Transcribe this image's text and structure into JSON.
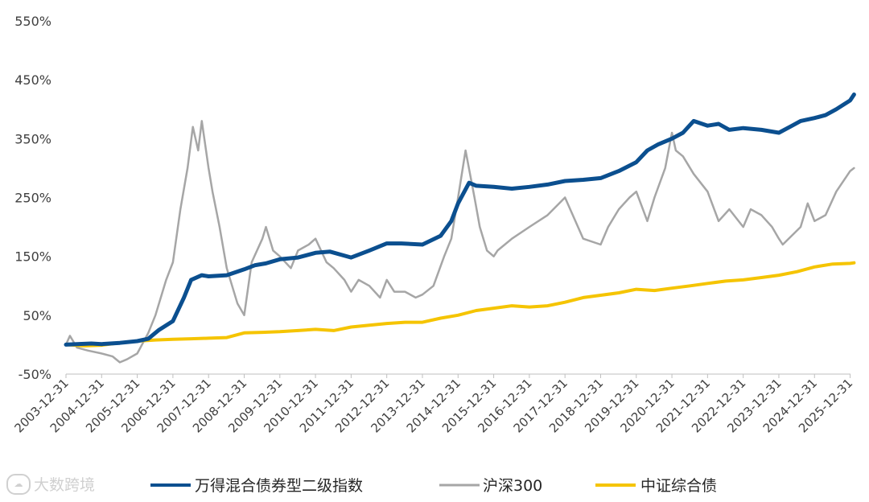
{
  "chart_data": {
    "type": "line",
    "ylim": [
      -50,
      550
    ],
    "yticks": [
      "550%",
      "450%",
      "350%",
      "250%",
      "150%",
      "50%",
      "-50%"
    ],
    "ytick_values": [
      550,
      450,
      350,
      250,
      150,
      50,
      -50
    ],
    "x_categories": [
      "2003-12-31",
      "2004-12-31",
      "2005-12-31",
      "2006-12-31",
      "2007-12-31",
      "2008-12-31",
      "2009-12-31",
      "2010-12-31",
      "2011-12-31",
      "2012-12-31",
      "2013-12-31",
      "2014-12-31",
      "2015-12-31",
      "2016-12-31",
      "2017-12-31",
      "2018-12-31",
      "2019-12-31",
      "2020-12-31",
      "2021-12-31",
      "2022-12-31",
      "2023-12-31",
      "2024-12-31",
      "2025-12-31"
    ],
    "series": [
      {
        "name": "万得混合债券型二级指数",
        "color": "#0b4f8f",
        "x": [
          2003.99,
          2004.3,
          2004.7,
          2004.99,
          2005.5,
          2005.99,
          2006.3,
          2006.6,
          2006.99,
          2007.3,
          2007.5,
          2007.8,
          2007.99,
          2008.5,
          2008.99,
          2009.3,
          2009.6,
          2009.99,
          2010.5,
          2010.99,
          2011.4,
          2011.99,
          2012.5,
          2012.99,
          2013.4,
          2013.99,
          2014.5,
          2014.8,
          2014.99,
          2015.3,
          2015.5,
          2015.99,
          2016.5,
          2016.99,
          2017.5,
          2017.99,
          2018.5,
          2018.99,
          2019.5,
          2019.99,
          2020.3,
          2020.6,
          2020.99,
          2021.3,
          2021.6,
          2021.99,
          2022.3,
          2022.6,
          2022.99,
          2023.5,
          2023.99,
          2024.3,
          2024.6,
          2024.99,
          2025.3,
          2025.6,
          2025.99,
          2026.1
        ],
        "values": [
          0,
          1,
          2,
          1,
          3,
          6,
          10,
          25,
          40,
          80,
          110,
          118,
          116,
          118,
          128,
          135,
          138,
          145,
          148,
          156,
          158,
          148,
          160,
          172,
          172,
          170,
          185,
          210,
          240,
          275,
          270,
          268,
          265,
          268,
          272,
          278,
          280,
          283,
          295,
          310,
          330,
          340,
          350,
          360,
          380,
          372,
          375,
          365,
          368,
          365,
          360,
          370,
          380,
          385,
          390,
          400,
          415,
          425
        ]
      },
      {
        "name": "沪深300",
        "color": "#a6a6a6",
        "x": [
          2003.99,
          2004.1,
          2004.3,
          2004.6,
          2004.99,
          2005.3,
          2005.5,
          2005.7,
          2005.99,
          2006.3,
          2006.5,
          2006.8,
          2006.99,
          2007.2,
          2007.4,
          2007.55,
          2007.7,
          2007.8,
          2007.99,
          2008.1,
          2008.3,
          2008.5,
          2008.8,
          2008.99,
          2009.2,
          2009.5,
          2009.6,
          2009.8,
          2009.99,
          2010.3,
          2010.5,
          2010.8,
          2010.99,
          2011.3,
          2011.5,
          2011.8,
          2011.99,
          2012.2,
          2012.5,
          2012.8,
          2012.99,
          2013.2,
          2013.5,
          2013.8,
          2013.99,
          2014.3,
          2014.6,
          2014.8,
          2014.99,
          2015.2,
          2015.45,
          2015.6,
          2015.8,
          2015.99,
          2016.1,
          2016.5,
          2016.99,
          2017.5,
          2017.99,
          2018.5,
          2018.99,
          2019.2,
          2019.5,
          2019.8,
          2019.99,
          2020.3,
          2020.5,
          2020.8,
          2020.99,
          2021.1,
          2021.3,
          2021.6,
          2021.99,
          2022.3,
          2022.6,
          2022.99,
          2023.2,
          2023.5,
          2023.8,
          2023.99,
          2024.1,
          2024.6,
          2024.8,
          2024.99,
          2025.3,
          2025.6,
          2025.99,
          2026.1
        ],
        "values": [
          0,
          15,
          -5,
          -10,
          -15,
          -20,
          -30,
          -25,
          -15,
          20,
          50,
          110,
          140,
          230,
          300,
          370,
          330,
          380,
          300,
          260,
          200,
          130,
          70,
          50,
          140,
          180,
          200,
          160,
          150,
          130,
          160,
          170,
          180,
          140,
          130,
          110,
          90,
          110,
          100,
          80,
          110,
          90,
          90,
          80,
          85,
          100,
          150,
          180,
          250,
          330,
          250,
          200,
          160,
          150,
          160,
          180,
          200,
          220,
          250,
          180,
          170,
          200,
          230,
          250,
          260,
          210,
          250,
          300,
          360,
          330,
          320,
          290,
          260,
          210,
          230,
          200,
          230,
          220,
          200,
          180,
          170,
          200,
          240,
          210,
          220,
          260,
          295,
          300
        ]
      },
      {
        "name": "中证综合债",
        "color": "#f5c400",
        "x": [
          2003.99,
          2004.5,
          2004.99,
          2005.5,
          2005.99,
          2006.5,
          2006.99,
          2007.5,
          2007.99,
          2008.5,
          2008.99,
          2009.5,
          2009.99,
          2010.5,
          2010.99,
          2011.5,
          2011.99,
          2012.5,
          2012.99,
          2013.5,
          2013.99,
          2014.5,
          2014.99,
          2015.5,
          2015.99,
          2016.5,
          2016.99,
          2017.5,
          2017.99,
          2018.5,
          2018.99,
          2019.5,
          2019.99,
          2020.5,
          2020.99,
          2021.5,
          2021.99,
          2022.5,
          2022.99,
          2023.5,
          2023.99,
          2024.5,
          2024.99,
          2025.5,
          2025.99,
          2026.1
        ],
        "values": [
          0,
          -2,
          -1,
          3,
          6,
          8,
          9,
          10,
          11,
          12,
          20,
          21,
          22,
          24,
          26,
          24,
          30,
          33,
          36,
          38,
          38,
          45,
          50,
          58,
          62,
          66,
          64,
          66,
          72,
          80,
          84,
          88,
          94,
          92,
          96,
          100,
          104,
          108,
          110,
          114,
          118,
          124,
          132,
          137,
          138,
          139
        ]
      }
    ]
  },
  "legend": [
    "万得混合债券型二级指数",
    "沪深300",
    "中证综合债"
  ],
  "watermark": {
    "text": "大数跨境",
    "icon": "cloud-logo-icon"
  }
}
